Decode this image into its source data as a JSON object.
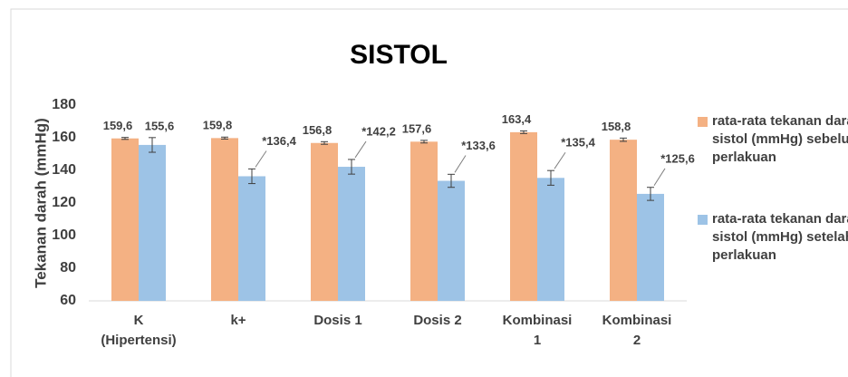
{
  "chart_data": {
    "type": "bar",
    "title": "SISTOL",
    "y_label": "Tekanan darah (mmHg)",
    "categories": [
      [
        "K",
        "(Hipertensi)"
      ],
      [
        "k+"
      ],
      [
        "Dosis 1"
      ],
      [
        "Dosis 2"
      ],
      [
        "Kombinasi",
        "1"
      ],
      [
        "Kombinasi",
        "2"
      ]
    ],
    "series": [
      {
        "name": "rata-rata tekanan darah sistol (mmHg) sebelum perlakuan",
        "color": "#f4b183",
        "values": [
          159.6,
          159.8,
          156.8,
          157.6,
          163.4,
          158.8
        ],
        "value_labels": [
          "159,6",
          "159,8",
          "156,8",
          "157,6",
          "163,4",
          "158,8"
        ],
        "errors": [
          0.6,
          0.6,
          0.8,
          0.8,
          0.8,
          1
        ]
      },
      {
        "name": "rata-rata tekanan darah sistol (mmHg) setelah perlakuan",
        "color": "#9dc3e6",
        "values": [
          155.6,
          136.4,
          142.2,
          133.6,
          135.4,
          125.6
        ],
        "value_labels": [
          "155,6",
          "*136,4",
          "*142,2",
          "*133,6",
          "*135,4",
          "*125,6"
        ],
        "errors": [
          4.5,
          4.5,
          4.5,
          4,
          4.5,
          4
        ]
      }
    ],
    "ylim": [
      60,
      180
    ],
    "yticks": [
      60,
      80,
      100,
      120,
      140,
      160,
      180
    ],
    "grid": false
  }
}
